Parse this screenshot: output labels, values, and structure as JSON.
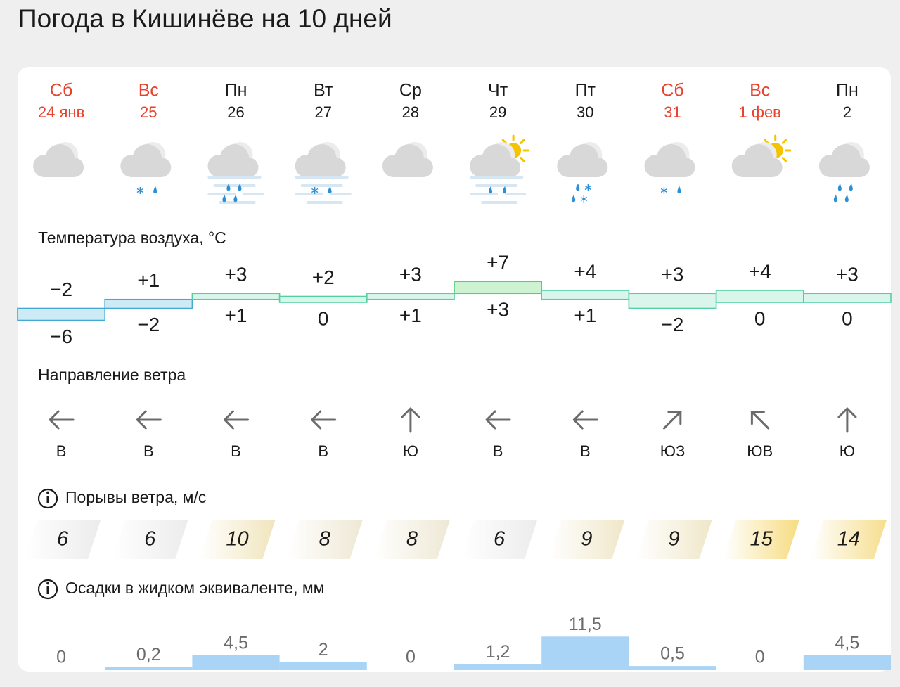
{
  "title": "Погода в Кишинёве на 10 дней",
  "days": [
    {
      "weekday": "Сб",
      "date": "24 янв",
      "weekend": true
    },
    {
      "weekday": "Вс",
      "date": "25",
      "weekend": true
    },
    {
      "weekday": "Пн",
      "date": "26",
      "weekend": false
    },
    {
      "weekday": "Вт",
      "date": "27",
      "weekend": false
    },
    {
      "weekday": "Ср",
      "date": "28",
      "weekend": false
    },
    {
      "weekday": "Чт",
      "date": "29",
      "weekend": false
    },
    {
      "weekday": "Пт",
      "date": "30",
      "weekend": false
    },
    {
      "weekday": "Сб",
      "date": "31",
      "weekend": true
    },
    {
      "weekday": "Вс",
      "date": "1 фев",
      "weekend": true
    },
    {
      "weekday": "Пн",
      "date": "2",
      "weekend": false
    }
  ],
  "temperature": {
    "label": "Температура воздуха, °С",
    "max": [
      -2,
      1,
      3,
      2,
      3,
      7,
      4,
      3,
      4,
      3
    ],
    "max_labels": [
      "−2",
      "+1",
      "+3",
      "+2",
      "+3",
      "+7",
      "+4",
      "+3",
      "+4",
      "+3"
    ],
    "min": [
      -6,
      -2,
      1,
      0,
      1,
      3,
      1,
      -2,
      0,
      0
    ],
    "min_labels": [
      "−6",
      "−2",
      "+1",
      "0",
      "+1",
      "+3",
      "+1",
      "−2",
      "0",
      "0"
    ]
  },
  "wind_direction": {
    "label": "Направление ветра",
    "values": [
      "В",
      "В",
      "В",
      "В",
      "Ю",
      "В",
      "В",
      "ЮЗ",
      "ЮВ",
      "Ю"
    ]
  },
  "wind_gusts": {
    "label": "Порывы ветра, м/с",
    "values": [
      6,
      6,
      10,
      8,
      8,
      6,
      9,
      9,
      15,
      14
    ]
  },
  "precipitation": {
    "label": "Осадки в жидком эквиваленте, мм",
    "values": [
      0,
      0.2,
      4.5,
      2,
      0,
      1.2,
      11.5,
      0.5,
      0,
      4.5
    ],
    "value_labels": [
      "0",
      "0,2",
      "4,5",
      "2",
      "0",
      "1,2",
      "11,5",
      "0,5",
      "0",
      "4,5"
    ]
  }
}
